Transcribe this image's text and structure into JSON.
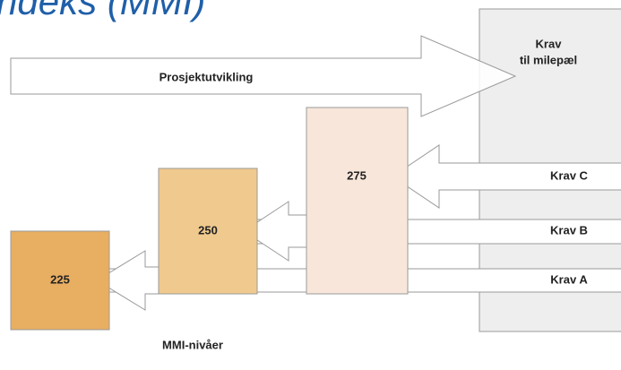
{
  "title": "ndeks (MMI)",
  "process": {
    "label": "Prosjektutvikling"
  },
  "milestone": {
    "label_line1": "Krav",
    "label_line2": "til milepæl"
  },
  "levels": [
    {
      "label": "225"
    },
    {
      "label": "250"
    },
    {
      "label": "275"
    }
  ],
  "requirements": [
    {
      "label": "Krav A"
    },
    {
      "label": "Krav B"
    },
    {
      "label": "Krav C"
    }
  ],
  "footer": "MMI-nivåer"
}
